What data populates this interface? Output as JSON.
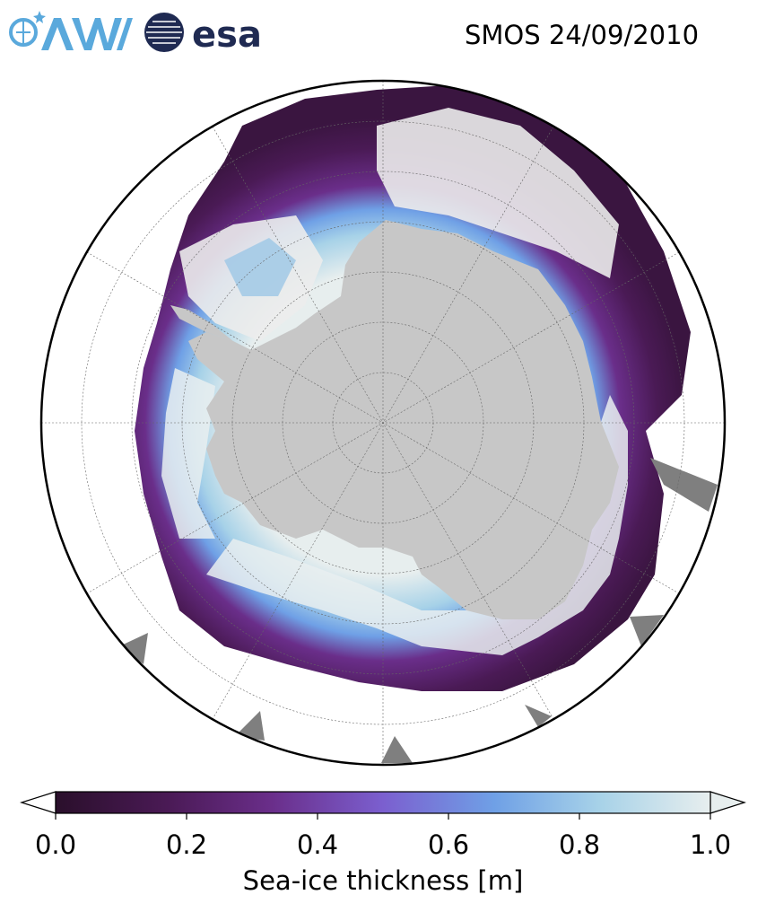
{
  "header": {
    "title": "SMOS 24/09/2010",
    "logos": [
      {
        "name": "awi-logo",
        "text": "AWI",
        "color": "#5aa9dc"
      },
      {
        "name": "esa-logo",
        "text": "esa",
        "color": "#1f2a52"
      }
    ]
  },
  "map": {
    "projection": "south-polar-stereographic",
    "colors": {
      "land": "#c7c7c7",
      "land_shadow": "#7f7f7f",
      "ocean": "#ffffff",
      "thick_ice": "#ececec",
      "graticule": "#666666",
      "frame": "#000000"
    }
  },
  "colorbar": {
    "label": "Sea-ice thickness [m]",
    "range": [
      0.0,
      1.0
    ],
    "ticks": [
      "0.0",
      "0.2",
      "0.4",
      "0.6",
      "0.8",
      "1.0"
    ],
    "extend": "both",
    "colormap": [
      "#2a0f2b",
      "#4a1a55",
      "#6a2e8a",
      "#7b5fcf",
      "#6fa0e6",
      "#a7d2e8",
      "#e7eeee"
    ]
  }
}
